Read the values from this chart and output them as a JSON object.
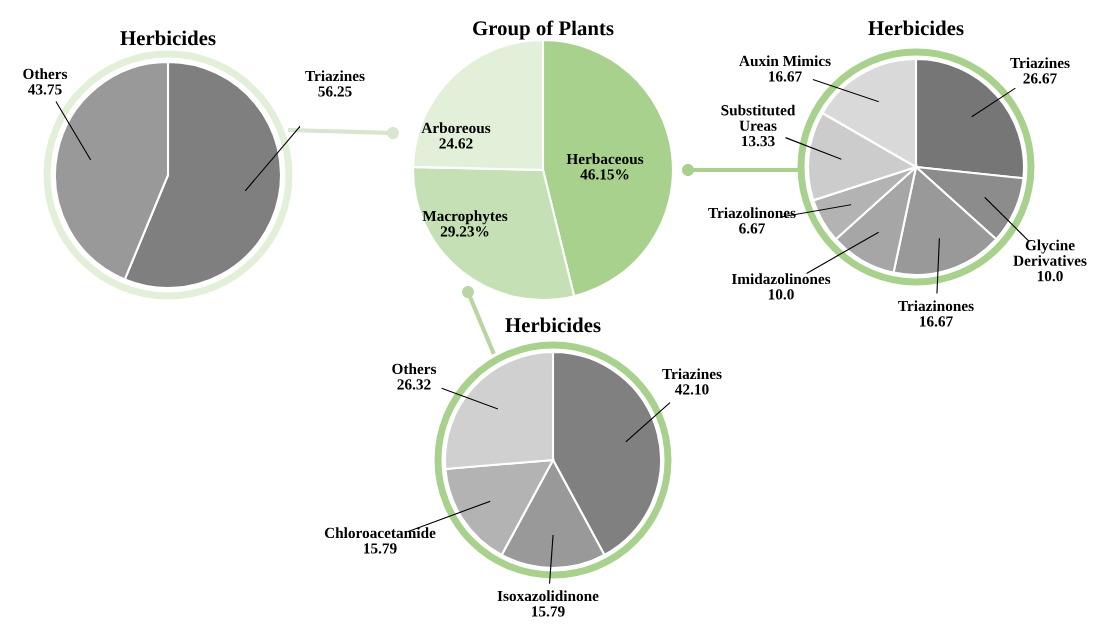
{
  "chart_data": [
    {
      "type": "pie",
      "title": "Herbicides",
      "categories": [
        "Triazines",
        "Others"
      ],
      "values": [
        56.25,
        43.75
      ],
      "colors": [
        "#7f7f7f",
        "#999999"
      ],
      "value_labels": [
        "56.25",
        "43.75"
      ]
    },
    {
      "type": "pie",
      "title": "Group of Plants",
      "categories": [
        "Herbaceous",
        "Macrophytes",
        "Arboreous"
      ],
      "values": [
        46.15,
        29.23,
        24.62
      ],
      "colors": [
        "#a9d18e",
        "#c5e0b4",
        "#e2f0d9"
      ],
      "value_labels": [
        "46.15%",
        "29.23%",
        "24.62"
      ]
    },
    {
      "type": "pie",
      "title": "Herbicides",
      "categories": [
        "Triazines",
        "Glycine Derivatives",
        "Triazinones",
        "Imidazolinones",
        "Triazolinones",
        "Substituted Ureas",
        "Auxin Mimics"
      ],
      "values": [
        26.67,
        10.0,
        16.67,
        10.0,
        6.67,
        13.33,
        16.67
      ],
      "colors": [
        "#767676",
        "#8c8c8c",
        "#999999",
        "#a6a6a6",
        "#b3b3b3",
        "#cccccc",
        "#d9d9d9"
      ],
      "value_labels": [
        "26.67",
        "10.0",
        "16.67",
        "10.0",
        "6.67",
        "13.33",
        "16.67"
      ]
    },
    {
      "type": "pie",
      "title": "Herbicides",
      "categories": [
        "Triazines",
        "Isoxazolidinone",
        "Chloroacetamide",
        "Others"
      ],
      "values": [
        42.1,
        15.79,
        15.79,
        26.32
      ],
      "colors": [
        "#808080",
        "#999999",
        "#b3b3b3",
        "#d0d0d0"
      ],
      "value_labels": [
        "42.10",
        "15.79",
        "15.79",
        "26.32"
      ]
    }
  ]
}
